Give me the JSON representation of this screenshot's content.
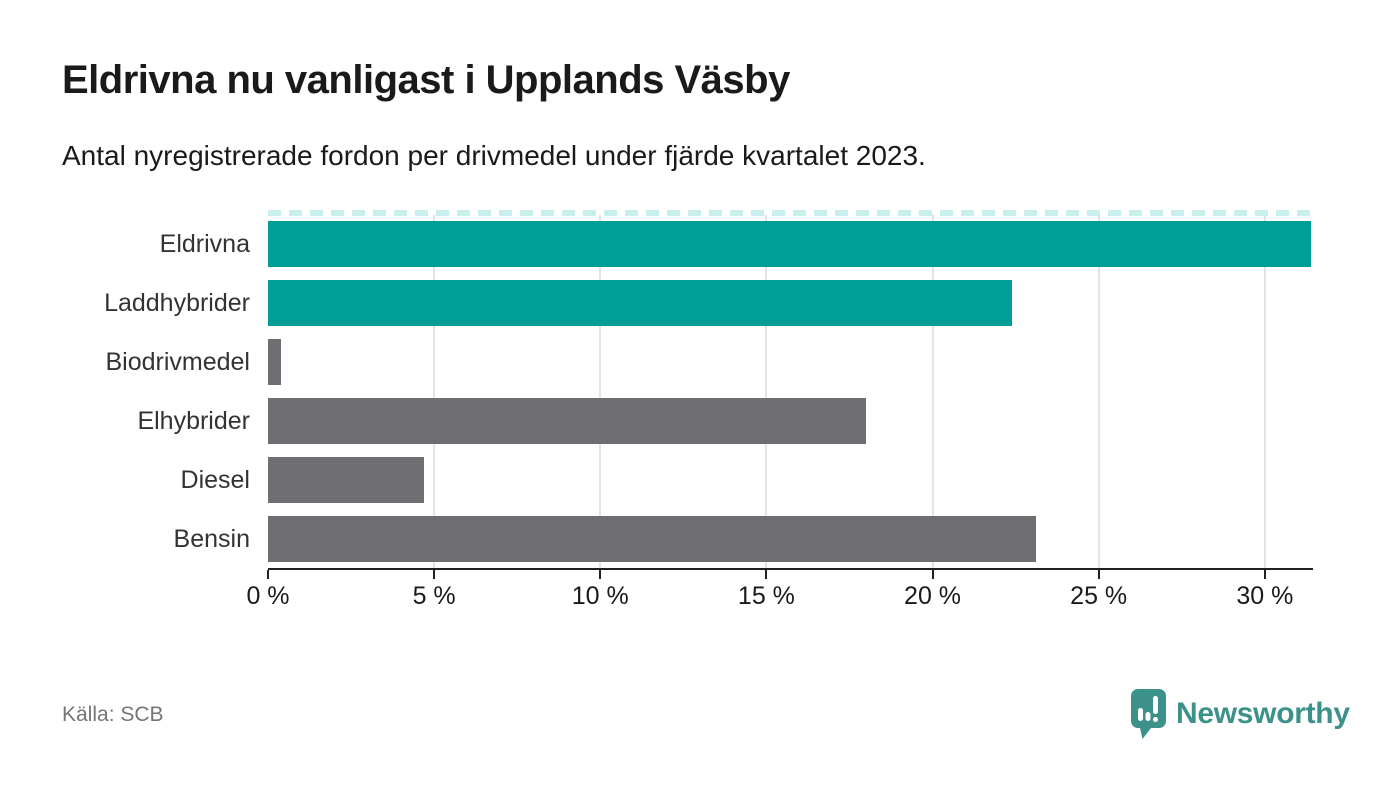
{
  "header": {
    "title": "Eldrivna nu vanligast i Upplands Väsby",
    "subtitle": "Antal nyregistrerade fordon per drivmedel under fjärde kvartalet 2023."
  },
  "chart_data": {
    "type": "bar",
    "orientation": "horizontal",
    "title": "Eldrivna nu vanligast i Upplands Väsby",
    "subtitle": "Antal nyregistrerade fordon per drivmedel under fjärde kvartalet 2023.",
    "categories": [
      "Eldrivna",
      "Laddhybrider",
      "Biodrivmedel",
      "Elhybrider",
      "Diesel",
      "Bensin"
    ],
    "values": [
      31.4,
      22.4,
      0.4,
      18.0,
      4.7,
      23.1
    ],
    "unit": "%",
    "bar_colors": [
      "#009E96",
      "#009E96",
      "#6E6E73",
      "#6E6E73",
      "#6E6E73",
      "#6E6E73"
    ],
    "xlabel": "",
    "ylabel": "",
    "xlim": [
      0,
      31.45
    ],
    "xtick_values": [
      0,
      5,
      10,
      15,
      20,
      25,
      30
    ],
    "xtick_labels": [
      "0 %",
      "5 %",
      "10 %",
      "15 %",
      "20 %",
      "25 %",
      "30 %"
    ],
    "grid": "vertical",
    "legend": "none"
  },
  "colors": {
    "accent_teal": "#009E96",
    "neutral_gray": "#6E6E73",
    "gridline": "#E3E3E3",
    "axis": "#222222",
    "top_dashed_edge": "#C9EFEC",
    "brand_teal": "#3D918B"
  },
  "footer": {
    "source": "Källa: SCB",
    "brand": "Newsworthy",
    "brand_icon": "speech-bubble-bar-chart-icon"
  }
}
